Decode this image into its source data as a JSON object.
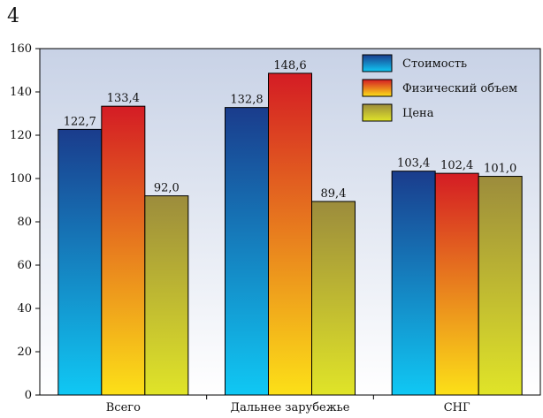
{
  "page_number": "4",
  "chart_data": {
    "type": "bar",
    "categories": [
      "Всего",
      "Дальнее зарубежье",
      "СНГ"
    ],
    "series": [
      {
        "name": "Стоимость",
        "values": [
          122.7,
          132.8,
          103.4
        ],
        "labels": [
          "122,7",
          "132,8",
          "103,4"
        ]
      },
      {
        "name": "Физический объем",
        "values": [
          133.4,
          148.6,
          102.4
        ],
        "labels": [
          "133,4",
          "148,6",
          "102,4"
        ]
      },
      {
        "name": "Цена",
        "values": [
          92.0,
          89.4,
          101.0
        ],
        "labels": [
          "92,0",
          "89,4",
          "101,0"
        ]
      }
    ],
    "ylim": [
      0,
      160
    ],
    "yticks": [
      0,
      20,
      40,
      60,
      80,
      100,
      120,
      140,
      160
    ],
    "grid": false,
    "legend_position": "top-right",
    "colors": {
      "series0": [
        "#1a3c8c",
        "#10c8f4"
      ],
      "series1": [
        "#d41c24",
        "#fce018"
      ],
      "series2": [
        "#9c8c3c",
        "#e0e428"
      ],
      "plot_background": [
        "#c8d2e6",
        "#ffffff"
      ]
    }
  }
}
